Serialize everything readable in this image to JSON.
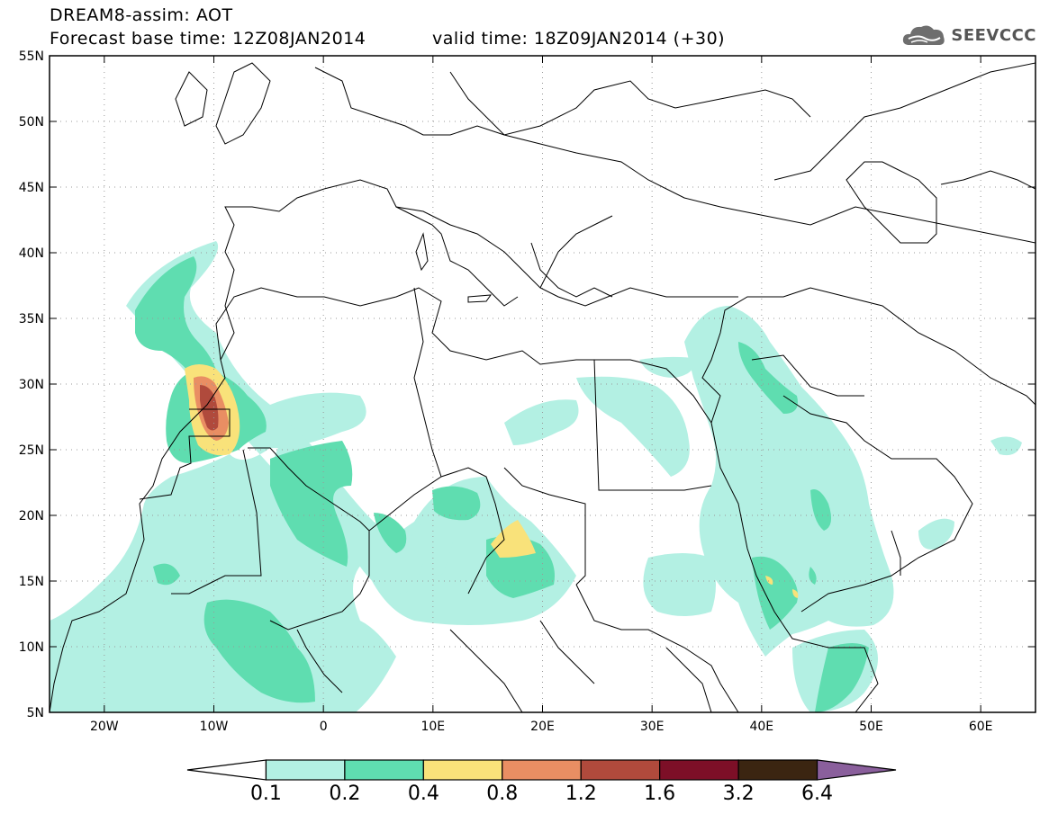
{
  "header": {
    "title_line1": "DREAM8-assim: AOT",
    "base_time": "Forecast base time: 12Z08JAN2014",
    "valid_time": "valid time: 18Z09JAN2014 (+30)",
    "logo_text": "SEEVCCC",
    "logo_icon": "cloud-icon"
  },
  "map": {
    "lon_range": [
      -25,
      65
    ],
    "lat_range": [
      5,
      55
    ],
    "lon_ticks": [
      "20W",
      "10W",
      "0",
      "10E",
      "20E",
      "30E",
      "40E",
      "50E",
      "60E"
    ],
    "lat_ticks": [
      "5N",
      "10N",
      "15N",
      "20N",
      "25N",
      "30N",
      "35N",
      "40N",
      "45N",
      "50N",
      "55N"
    ],
    "grid": "dotted"
  },
  "colorbar": {
    "levels": [
      "0.1",
      "0.2",
      "0.4",
      "0.8",
      "1.2",
      "1.6",
      "3.2",
      "6.4"
    ],
    "colors": [
      "#ffffff",
      "#b3f0e3",
      "#5fddb0",
      "#f9e27a",
      "#e98e63",
      "#b04a3c",
      "#7d0f27",
      "#3b2511",
      "#8a5f9c"
    ]
  }
}
